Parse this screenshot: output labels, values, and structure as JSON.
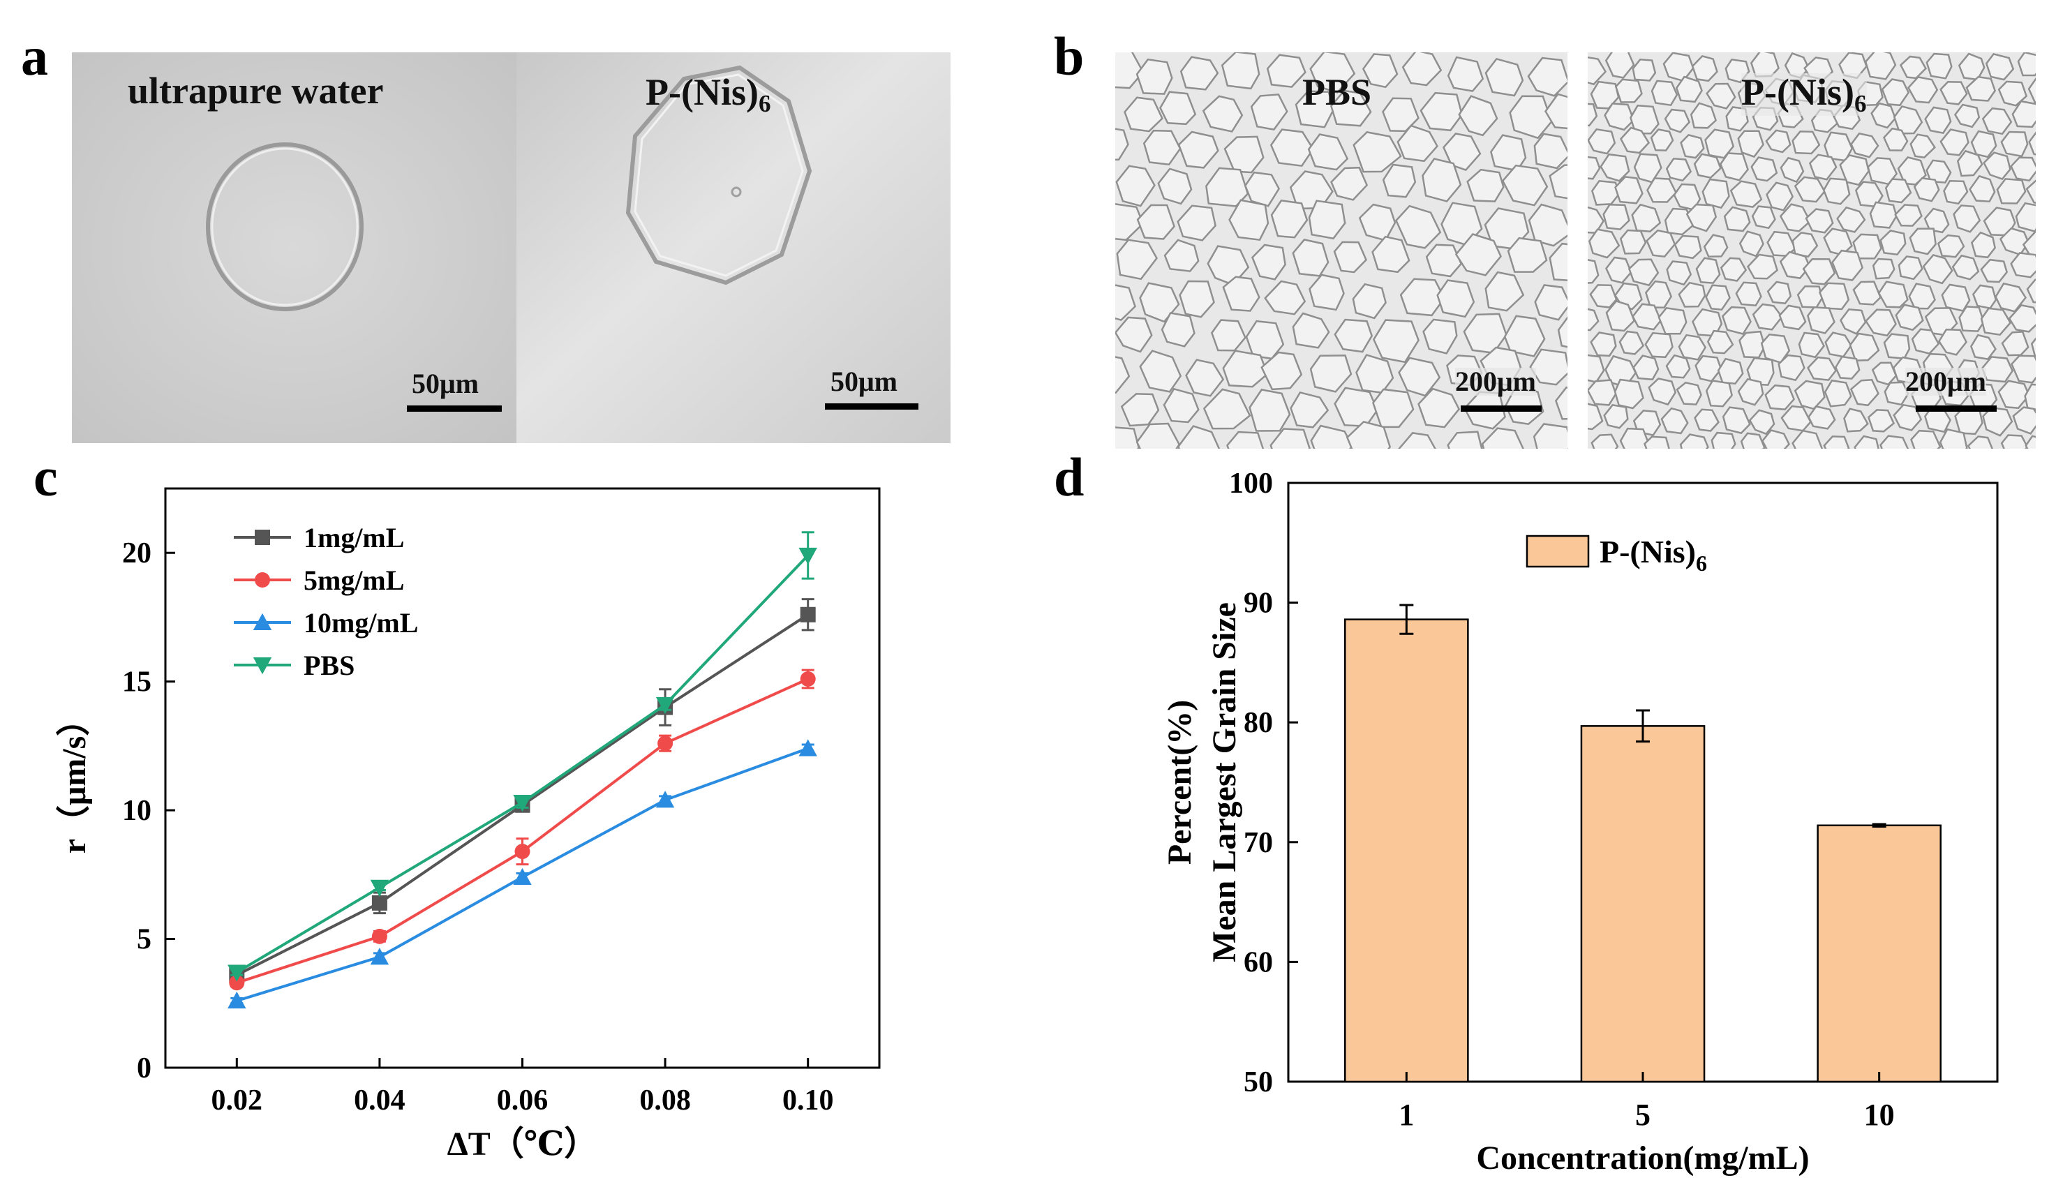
{
  "panels": {
    "a": {
      "letter": "a",
      "left_label": "ultrapure water",
      "right_label_main": "P-(Nis)",
      "right_label_sub": "6",
      "scale_left": "50μm",
      "scale_right": "50μm"
    },
    "b": {
      "letter": "b",
      "left_label": "PBS",
      "right_label_main": "P-(Nis)",
      "right_label_sub": "6",
      "scale_left": "200μm",
      "scale_right": "200μm"
    },
    "c": {
      "letter": "c"
    },
    "d": {
      "letter": "d"
    }
  },
  "chart_data": [
    {
      "id": "c",
      "type": "line",
      "x": [
        0.02,
        0.04,
        0.06,
        0.08,
        0.1
      ],
      "x_tick_labels": [
        "0.02",
        "0.04",
        "0.06",
        "0.08",
        "0.10"
      ],
      "xlim": [
        0.01,
        0.11
      ],
      "ylim": [
        0,
        22.5
      ],
      "y_ticks": [
        0,
        5,
        10,
        15,
        20
      ],
      "xlabel": "ΔT（℃）",
      "ylabel": "r（μm/s）",
      "legend_position": "top-left",
      "series": [
        {
          "name": "1mg/mL",
          "color": "#555555",
          "marker": "square",
          "values": [
            3.6,
            6.4,
            10.2,
            14.0,
            17.6
          ],
          "errors": [
            0.2,
            0.4,
            0.2,
            0.7,
            0.6
          ]
        },
        {
          "name": "5mg/mL",
          "color": "#f04b4b",
          "marker": "circle",
          "values": [
            3.3,
            5.1,
            8.4,
            12.6,
            15.1
          ],
          "errors": [
            0.15,
            0.2,
            0.5,
            0.3,
            0.35
          ]
        },
        {
          "name": "10mg/mL",
          "color": "#2a8ce0",
          "marker": "triangle-up",
          "values": [
            2.6,
            4.3,
            7.4,
            10.4,
            12.4
          ],
          "errors": [
            0.1,
            0.15,
            0.15,
            0.15,
            0.15
          ]
        },
        {
          "name": "PBS",
          "color": "#20a77a",
          "marker": "triangle-down",
          "values": [
            3.7,
            7.0,
            10.3,
            14.1,
            19.9
          ],
          "errors": [
            0.1,
            0.1,
            0.2,
            0.2,
            0.9
          ]
        }
      ]
    },
    {
      "id": "d",
      "type": "bar",
      "categories": [
        "1",
        "5",
        "10"
      ],
      "series": [
        {
          "name": "P-(Nis)",
          "name_sub": "6",
          "color": "#fac898",
          "values": [
            88.6,
            79.7,
            71.4
          ],
          "errors": [
            1.2,
            1.3,
            0.1
          ]
        }
      ],
      "ylim": [
        50,
        100
      ],
      "y_ticks": [
        50,
        60,
        70,
        80,
        90,
        100
      ],
      "xlabel": "Concentration(mg/mL)",
      "ylabel_line1": "Percent(%)",
      "ylabel_line2": "Mean Largest Grain Size",
      "legend_position": "top-center"
    }
  ]
}
